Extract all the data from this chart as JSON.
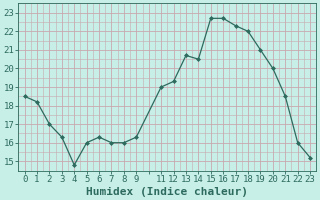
{
  "x": [
    0,
    1,
    2,
    3,
    4,
    5,
    6,
    7,
    8,
    9,
    11,
    12,
    13,
    14,
    15,
    16,
    17,
    18,
    19,
    20,
    21,
    22,
    23
  ],
  "y": [
    18.5,
    18.2,
    17.0,
    16.3,
    14.8,
    16.0,
    16.3,
    16.0,
    16.0,
    16.3,
    19.0,
    19.3,
    20.7,
    20.5,
    22.7,
    22.7,
    22.3,
    22.0,
    21.0,
    20.0,
    18.5,
    16.0,
    15.2
  ],
  "line_color": "#2d6b5e",
  "marker_color": "#2d6b5e",
  "bg_color": "#c8eee8",
  "grid_color": "#c8a8b0",
  "xlabel": "Humidex (Indice chaleur)",
  "xlabel_fontsize": 8,
  "tick_fontsize": 6.5,
  "ylim": [
    14.5,
    23.5
  ],
  "xlim": [
    -0.5,
    23.5
  ],
  "yticks": [
    15,
    16,
    17,
    18,
    19,
    20,
    21,
    22,
    23
  ],
  "xtick_positions": [
    0,
    1,
    2,
    3,
    4,
    5,
    6,
    7,
    8,
    9,
    10,
    11,
    12,
    13,
    14,
    15,
    16,
    17,
    18,
    19,
    20,
    21,
    22,
    23
  ],
  "xtick_labels": [
    "0",
    "1",
    "2",
    "3",
    "4",
    "5",
    "6",
    "7",
    "8",
    "9",
    "",
    "11",
    "12",
    "13",
    "14",
    "15",
    "16",
    "17",
    "18",
    "19",
    "20",
    "21",
    "22",
    "23"
  ]
}
